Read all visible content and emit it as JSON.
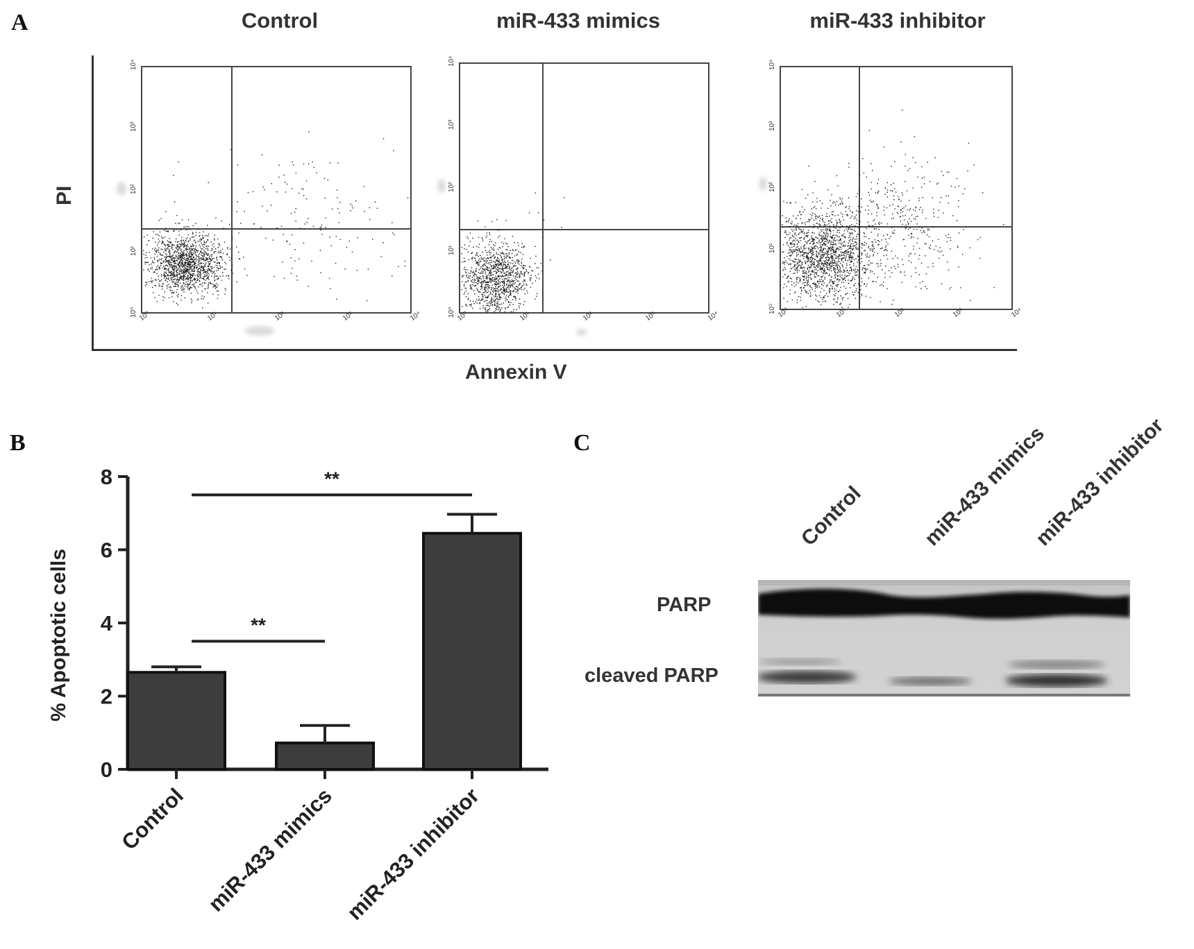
{
  "panels": {
    "a": "A",
    "b": "B",
    "c": "C"
  },
  "flow": {
    "titles": [
      "Control",
      "miR-433 mimics",
      "miR-433 inhibitor"
    ],
    "y_label": "PI",
    "x_label": "Annexin V",
    "tick_labels": [
      "10⁰",
      "10¹",
      "10²",
      "10³",
      "10⁴"
    ]
  },
  "chart_data": {
    "type": "bar",
    "categories": [
      "Control",
      "miR-433 mimics",
      "miR-433 inhibitor"
    ],
    "values": [
      2.65,
      0.72,
      6.45
    ],
    "errors": [
      0.15,
      0.48,
      0.52
    ],
    "ylabel": "% Apoptotic cells",
    "ylim": [
      0,
      8
    ],
    "yticks": [
      0,
      2,
      4,
      6,
      8
    ],
    "significance": [
      {
        "pair": [
          "Control",
          "miR-433 mimics"
        ],
        "label": "**"
      },
      {
        "pair": [
          "Control",
          "miR-433 inhibitor"
        ],
        "label": "**"
      }
    ],
    "bar_color": "#3d3d3d"
  },
  "blot": {
    "lanes": [
      "Control",
      "miR-433 mimics",
      "miR-433 inhibitor"
    ],
    "bands": [
      "PARP",
      "cleaved PARP"
    ]
  }
}
